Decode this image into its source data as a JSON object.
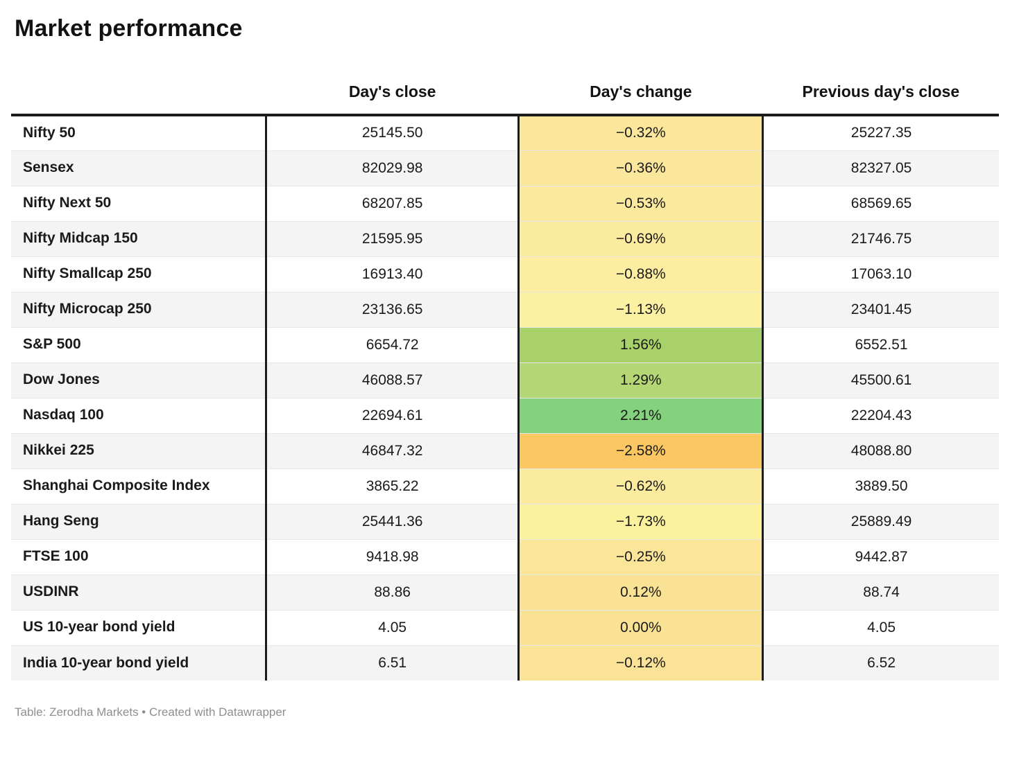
{
  "title": "Market performance",
  "footer": "Table: Zerodha Markets • Created with Datawrapper",
  "chart_data": {
    "type": "table",
    "title": "Market performance",
    "columns": [
      "",
      "Day's close",
      "Day's change",
      "Previous day's close"
    ],
    "legend_note": "Day's change cells are heat-colored: green = positive, yellow = mildly negative, orange = strongly negative",
    "rows": [
      {
        "label": "Nifty 50",
        "close": "25145.50",
        "change": "−0.32%",
        "prev": "25227.35",
        "change_color": "#FBE69B"
      },
      {
        "label": "Sensex",
        "close": "82029.98",
        "change": "−0.36%",
        "prev": "82327.05",
        "change_color": "#FBE79C"
      },
      {
        "label": "Nifty Next 50",
        "close": "68207.85",
        "change": "−0.53%",
        "prev": "68569.65",
        "change_color": "#FBE99D"
      },
      {
        "label": "Nifty Midcap 150",
        "close": "21595.95",
        "change": "−0.69%",
        "prev": "21746.75",
        "change_color": "#FBEB9E"
      },
      {
        "label": "Nifty Smallcap 250",
        "close": "16913.40",
        "change": "−0.88%",
        "prev": "17063.10",
        "change_color": "#FCEDA0"
      },
      {
        "label": "Nifty Microcap 250",
        "close": "23136.65",
        "change": "−1.13%",
        "prev": "23401.45",
        "change_color": "#FCF0A2"
      },
      {
        "label": "S&P 500",
        "close": "6654.72",
        "change": "1.56%",
        "prev": "6552.51",
        "change_color": "#A8D169"
      },
      {
        "label": "Dow Jones",
        "close": "46088.57",
        "change": "1.29%",
        "prev": "45500.61",
        "change_color": "#B4D675"
      },
      {
        "label": "Nasdaq 100",
        "close": "22694.61",
        "change": "2.21%",
        "prev": "22204.43",
        "change_color": "#84D27E"
      },
      {
        "label": "Nikkei 225",
        "close": "46847.32",
        "change": "−2.58%",
        "prev": "48088.80",
        "change_color": "#FBC763"
      },
      {
        "label": "Shanghai Composite Index",
        "close": "3865.22",
        "change": "−0.62%",
        "prev": "3889.50",
        "change_color": "#FBEB9E"
      },
      {
        "label": "Hang Seng",
        "close": "25441.36",
        "change": "−1.73%",
        "prev": "25889.49",
        "change_color": "#FCF29E"
      },
      {
        "label": "FTSE 100",
        "close": "9418.98",
        "change": "−0.25%",
        "prev": "9442.87",
        "change_color": "#FBE599"
      },
      {
        "label": "USDINR",
        "close": "88.86",
        "change": "0.12%",
        "prev": "88.74",
        "change_color": "#FAE295"
      },
      {
        "label": "US 10-year bond yield",
        "close": "4.05",
        "change": "0.00%",
        "prev": "4.05",
        "change_color": "#FAE294"
      },
      {
        "label": "India 10-year bond yield",
        "close": "6.51",
        "change": "−0.12%",
        "prev": "6.52",
        "change_color": "#FAE396"
      }
    ]
  }
}
